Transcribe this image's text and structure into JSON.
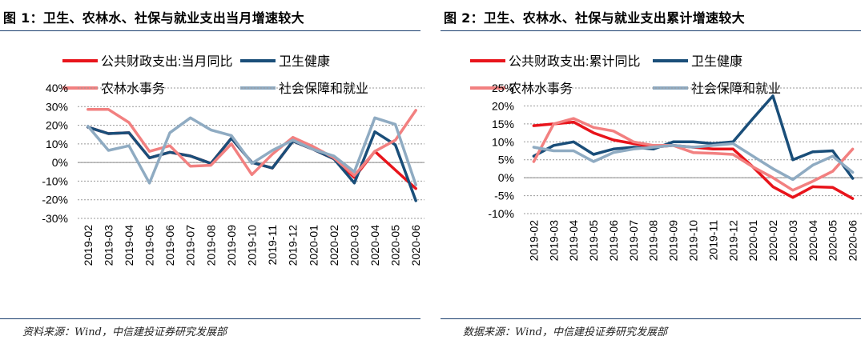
{
  "colors": {
    "red": "#e8141b",
    "navy": "#1a4e79",
    "pink": "#f28080",
    "steel": "#8fabc2",
    "grid": "#999999"
  },
  "panels": [
    {
      "title": "图 1：卫生、农林水、社保与就业支出当月增速较大",
      "source": "资料来源：Wind，中信建投证券研究发展部"
    },
    {
      "title": "图 2：卫生、农林水、社保与就业支出累计增速较大",
      "source": "数据来源：Wind，中信建投证券研究发展部"
    }
  ],
  "chart_data": [
    {
      "type": "line",
      "title": "图 1：卫生、农林水、社保与就业支出当月增速较大",
      "categories": [
        "2019-02",
        "2019-03",
        "2019-04",
        "2019-05",
        "2019-06",
        "2019-07",
        "2019-08",
        "2019-09",
        "2019-10",
        "2019-11",
        "2019-12",
        "2020-01",
        "2020-02",
        "2020-03",
        "2020-04",
        "2020-05",
        "2020-06"
      ],
      "ylim": [
        -30,
        40
      ],
      "yticks": [
        40,
        30,
        20,
        10,
        0,
        -10,
        -20,
        -30
      ],
      "tick_suffix": "%",
      "legend_layout": "two rows, top",
      "series": [
        {
          "name": "公共财政支出:当月同比",
          "color": "#e8141b",
          "values": [
            19,
            15.5,
            16,
            2.5,
            5.5,
            3.5,
            -0.5,
            13,
            0,
            -3,
            11.5,
            7,
            2,
            -8,
            6,
            -4,
            -14
          ]
        },
        {
          "name": "卫生健康",
          "color": "#1a4e79",
          "values": [
            19,
            15.5,
            16,
            2.5,
            5.5,
            3.5,
            -0.5,
            13,
            0,
            -3,
            11.5,
            7,
            2,
            -11,
            16.5,
            9.5,
            -20.5
          ]
        },
        {
          "name": "农林水事务",
          "color": "#f28080",
          "values": [
            28.5,
            28.5,
            21.5,
            6,
            9,
            -2,
            -1.5,
            10,
            -6.5,
            4.5,
            13.5,
            8.5,
            2.5,
            -7,
            6,
            12,
            28
          ]
        },
        {
          "name": "社会保障和就业",
          "color": "#8fabc2",
          "values": [
            19.5,
            6.5,
            9,
            -11,
            16,
            24,
            17.5,
            14.5,
            -0.5,
            6.5,
            12,
            7,
            3.5,
            -5,
            24,
            20.5,
            -12
          ]
        }
      ]
    },
    {
      "type": "line",
      "title": "图 2：卫生、农林水、社保与就业支出累计增速较大",
      "categories": [
        "2019-02",
        "2019-03",
        "2019-04",
        "2019-05",
        "2019-06",
        "2019-07",
        "2019-08",
        "2019-09",
        "2019-10",
        "2019-11",
        "2019-12",
        "2020-01",
        "2020-02",
        "2020-03",
        "2020-04",
        "2020-05",
        "2020-06"
      ],
      "ylim": [
        -10,
        25
      ],
      "yticks": [
        25,
        20,
        15,
        10,
        5,
        0,
        -5,
        -10
      ],
      "tick_suffix": "%",
      "legend_layout": "two rows, top",
      "series": [
        {
          "name": "公共财政支出:累计同比",
          "color": "#e8141b",
          "values": [
            14.5,
            15,
            15.5,
            12.5,
            10.5,
            9.5,
            8.5,
            9,
            8.5,
            8,
            8,
            3,
            -2.5,
            -5.5,
            -2.5,
            -2.7,
            -5.8
          ]
        },
        {
          "name": "卫生健康",
          "color": "#1a4e79",
          "values": [
            6,
            9,
            10,
            6.5,
            8,
            8.5,
            8,
            10,
            10,
            9.5,
            10,
            16.5,
            22.8,
            5,
            7.2,
            7.5,
            -0.2
          ]
        },
        {
          "name": "农林水事务",
          "color": "#f28080",
          "values": [
            4.5,
            15,
            16.5,
            14,
            13,
            10,
            9,
            9,
            7,
            6.8,
            6.5,
            3,
            0,
            -3.5,
            -1,
            1.8,
            8
          ]
        },
        {
          "name": "社会保障和就业",
          "color": "#8fabc2",
          "values": [
            8.5,
            7.5,
            7.5,
            4.5,
            7,
            8,
            8.5,
            9,
            8.5,
            9,
            9.5,
            6,
            2.5,
            -0.5,
            3.5,
            6,
            1.5
          ]
        }
      ]
    }
  ]
}
